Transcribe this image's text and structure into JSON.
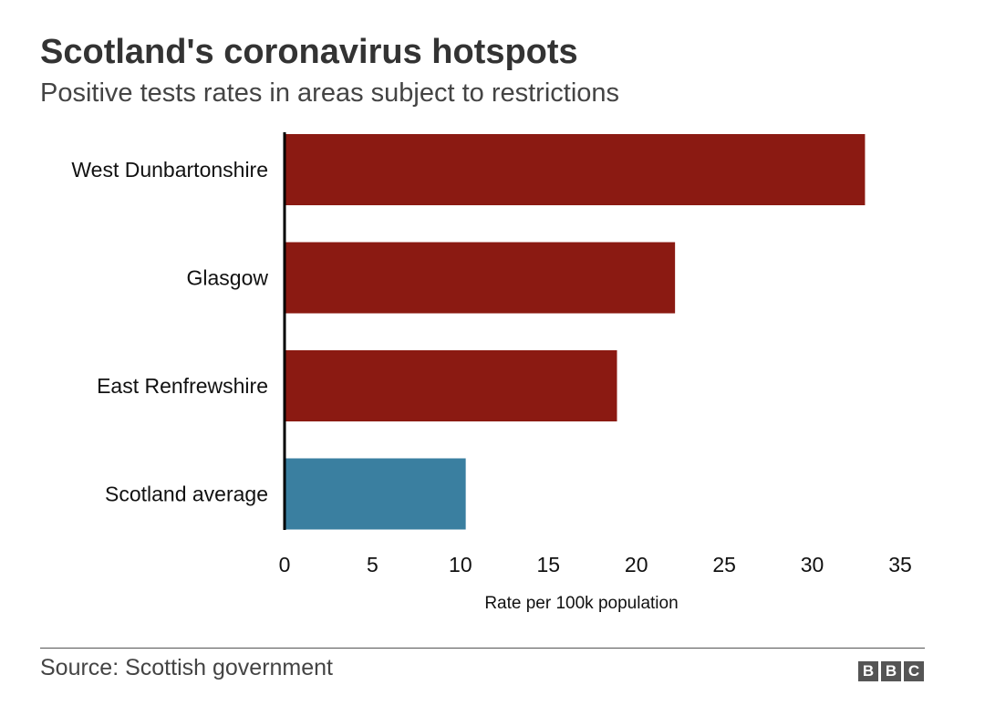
{
  "header": {
    "title": "Scotland's coronavirus hotspots",
    "subtitle": "Positive tests rates in areas subject to restrictions"
  },
  "chart_data": {
    "type": "bar",
    "orientation": "horizontal",
    "title": "Scotland's coronavirus hotspots",
    "subtitle": "Positive tests rates in areas subject to restrictions",
    "categories": [
      "West Dunbartonshire",
      "Glasgow",
      "East Renfrewshire",
      "Scotland average"
    ],
    "values": [
      33.0,
      22.2,
      18.9,
      10.3
    ],
    "colors": [
      "#8b1a12",
      "#8b1a12",
      "#8b1a12",
      "#3a7fa0"
    ],
    "xlabel": "Rate per 100k population",
    "ylabel": "",
    "xlim": [
      0,
      35
    ],
    "xticks": [
      0,
      5,
      10,
      15,
      20,
      25,
      30,
      35
    ],
    "grid": false,
    "legend": "none"
  },
  "footer": {
    "source": "Source: Scottish government",
    "logo_letters": [
      "B",
      "B",
      "C"
    ]
  }
}
